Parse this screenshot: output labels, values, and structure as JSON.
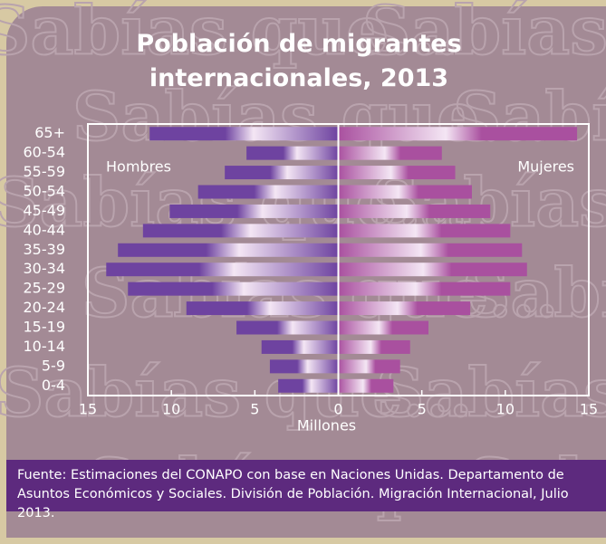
{
  "chart_data": {
    "type": "pyramid",
    "title": "Población de migrantes internacionales, 2013",
    "watermark": "Sabías que...",
    "xlabel": "Millones",
    "categories": [
      "65+",
      "60-54",
      "55-59",
      "50-54",
      "45-49",
      "40-44",
      "35-39",
      "30-34",
      "25-29",
      "20-24",
      "15-19",
      "10-14",
      "5-9",
      "0-4"
    ],
    "series": [
      {
        "name": "Hombres",
        "color": "#6e43a0",
        "values": [
          -11.3,
          -5.5,
          -6.8,
          -8.4,
          -10.1,
          -11.7,
          -13.2,
          -13.9,
          -12.6,
          -9.1,
          -6.1,
          -4.6,
          -4.1,
          -3.6
        ]
      },
      {
        "name": "Mujeres",
        "color": "#a9509f",
        "values": [
          14.3,
          6.2,
          7.0,
          8.0,
          9.1,
          10.3,
          11.0,
          11.3,
          10.3,
          7.9,
          5.4,
          4.3,
          3.7,
          3.3
        ]
      }
    ],
    "xlim": [
      -15,
      15
    ],
    "xticks": [
      {
        "value": -15,
        "label": "15"
      },
      {
        "value": -10,
        "label": "10"
      },
      {
        "value": -5,
        "label": "5"
      },
      0,
      5,
      10,
      15
    ],
    "source": "Fuente: Estimaciones del CONAPO con base en Naciones Unidas. Departamento de Asuntos Económicos y Sociales. División de Población. Migración Internacional, Julio 2013."
  }
}
